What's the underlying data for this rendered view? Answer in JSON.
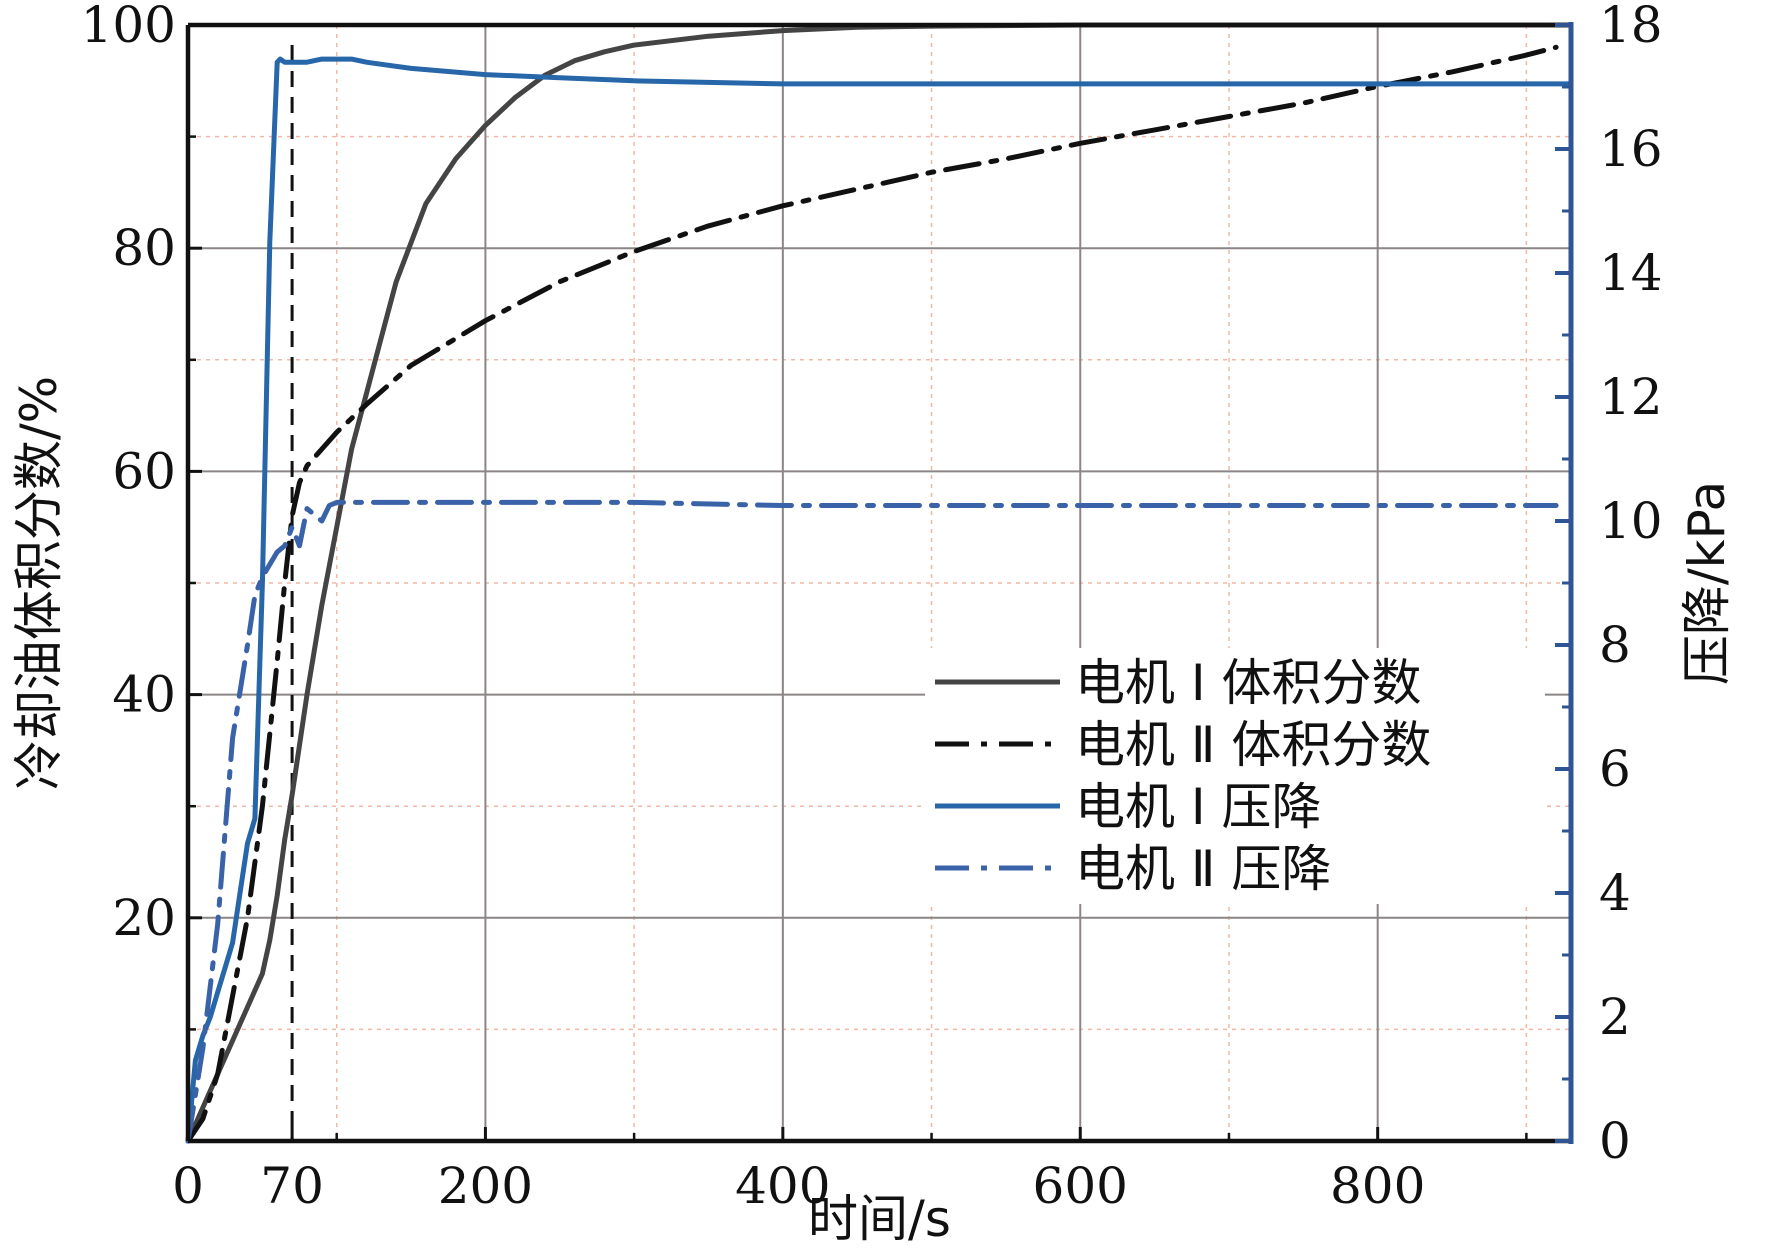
{
  "chart_data": {
    "type": "line",
    "xlabel": "时间/s",
    "ylabel_left": "冷却油体积分数/%",
    "ylabel_right": "压降/kPa",
    "xlim": [
      0,
      930
    ],
    "ylim_left": [
      0,
      100
    ],
    "ylim_right": [
      0,
      18
    ],
    "x_ticks": [
      0,
      70,
      200,
      400,
      600,
      800
    ],
    "x_tick_labels": [
      "0",
      "70",
      "200",
      "400",
      "600",
      "800"
    ],
    "y_left_ticks": [
      20,
      40,
      60,
      80,
      100
    ],
    "y_left_tick_labels": [
      "20",
      "40",
      "60",
      "80",
      "100"
    ],
    "y_right_ticks": [
      0,
      2,
      4,
      6,
      8,
      10,
      12,
      14,
      16,
      18
    ],
    "y_right_tick_labels": [
      "0",
      "2",
      "4",
      "6",
      "8",
      "10",
      "12",
      "14",
      "16",
      "18"
    ],
    "major_grid_x": [
      200,
      400,
      600,
      800
    ],
    "minor_grid_x": [
      100,
      300,
      500,
      700,
      900
    ],
    "major_grid_y": [
      20,
      40,
      60,
      80
    ],
    "minor_grid_y": [
      10,
      30,
      50,
      70,
      90
    ],
    "reference_line_x": 70,
    "grid": true,
    "legend_position": "right",
    "series": [
      {
        "name": "电机 Ⅰ 体积分数",
        "axis": "left",
        "color": "#444444",
        "dash": "solid",
        "x": [
          0,
          10,
          20,
          30,
          40,
          50,
          55,
          60,
          65,
          70,
          80,
          90,
          100,
          110,
          120,
          130,
          140,
          160,
          180,
          200,
          220,
          240,
          260,
          280,
          300,
          350,
          400,
          450,
          500,
          600,
          700,
          800,
          930
        ],
        "y": [
          0,
          3,
          6,
          9,
          12,
          15,
          18,
          22,
          27,
          31,
          40,
          48,
          55,
          62,
          67,
          72,
          77,
          84,
          88,
          91,
          93.5,
          95.5,
          96.8,
          97.6,
          98.2,
          99,
          99.5,
          99.8,
          99.9,
          100,
          100,
          100,
          100
        ]
      },
      {
        "name": "电机 Ⅱ 体积分数",
        "axis": "left",
        "color": "#111111",
        "dash": "dashdot",
        "x": [
          0,
          10,
          20,
          30,
          40,
          50,
          60,
          65,
          70,
          75,
          80,
          90,
          100,
          120,
          150,
          200,
          250,
          300,
          350,
          400,
          450,
          500,
          550,
          600,
          650,
          700,
          750,
          800,
          850,
          900,
          920
        ],
        "y": [
          0,
          2,
          6,
          13,
          20,
          30,
          43,
          50,
          56,
          59,
          60.5,
          62,
          63.5,
          66,
          69.5,
          73.5,
          77,
          79.7,
          82,
          83.8,
          85.3,
          86.8,
          88,
          89.4,
          90.6,
          91.8,
          93,
          94.5,
          95.8,
          97.3,
          98
        ]
      },
      {
        "name": "电机 Ⅰ 压降",
        "axis": "right",
        "color": "#2766A8",
        "dash": "solid",
        "x": [
          0,
          5,
          10,
          15,
          20,
          25,
          30,
          35,
          40,
          45,
          50,
          55,
          60,
          62,
          65,
          70,
          80,
          90,
          100,
          110,
          120,
          150,
          200,
          250,
          300,
          400,
          500,
          600,
          700,
          800,
          930
        ],
        "y": [
          0,
          1.3,
          1.7,
          2.0,
          2.4,
          2.8,
          3.2,
          4.0,
          4.8,
          5.2,
          9.0,
          14.5,
          17.4,
          17.45,
          17.4,
          17.4,
          17.4,
          17.45,
          17.45,
          17.45,
          17.4,
          17.3,
          17.2,
          17.15,
          17.1,
          17.05,
          17.05,
          17.05,
          17.05,
          17.05,
          17.05
        ]
      },
      {
        "name": "电机 Ⅱ 压降",
        "axis": "right",
        "color": "#3A62A8",
        "dash": "dashdot",
        "x": [
          0,
          10,
          20,
          30,
          40,
          45,
          50,
          55,
          60,
          65,
          70,
          75,
          80,
          85,
          90,
          95,
          100,
          120,
          150,
          200,
          300,
          400,
          500,
          600,
          700,
          800,
          900,
          920
        ],
        "y": [
          0,
          1.5,
          3.5,
          6.5,
          8.0,
          8.8,
          9.1,
          9.3,
          9.5,
          9.6,
          9.9,
          9.6,
          10.2,
          10.1,
          10.0,
          10.25,
          10.3,
          10.3,
          10.3,
          10.3,
          10.3,
          10.25,
          10.25,
          10.25,
          10.25,
          10.25,
          10.25,
          10.25
        ]
      }
    ]
  }
}
